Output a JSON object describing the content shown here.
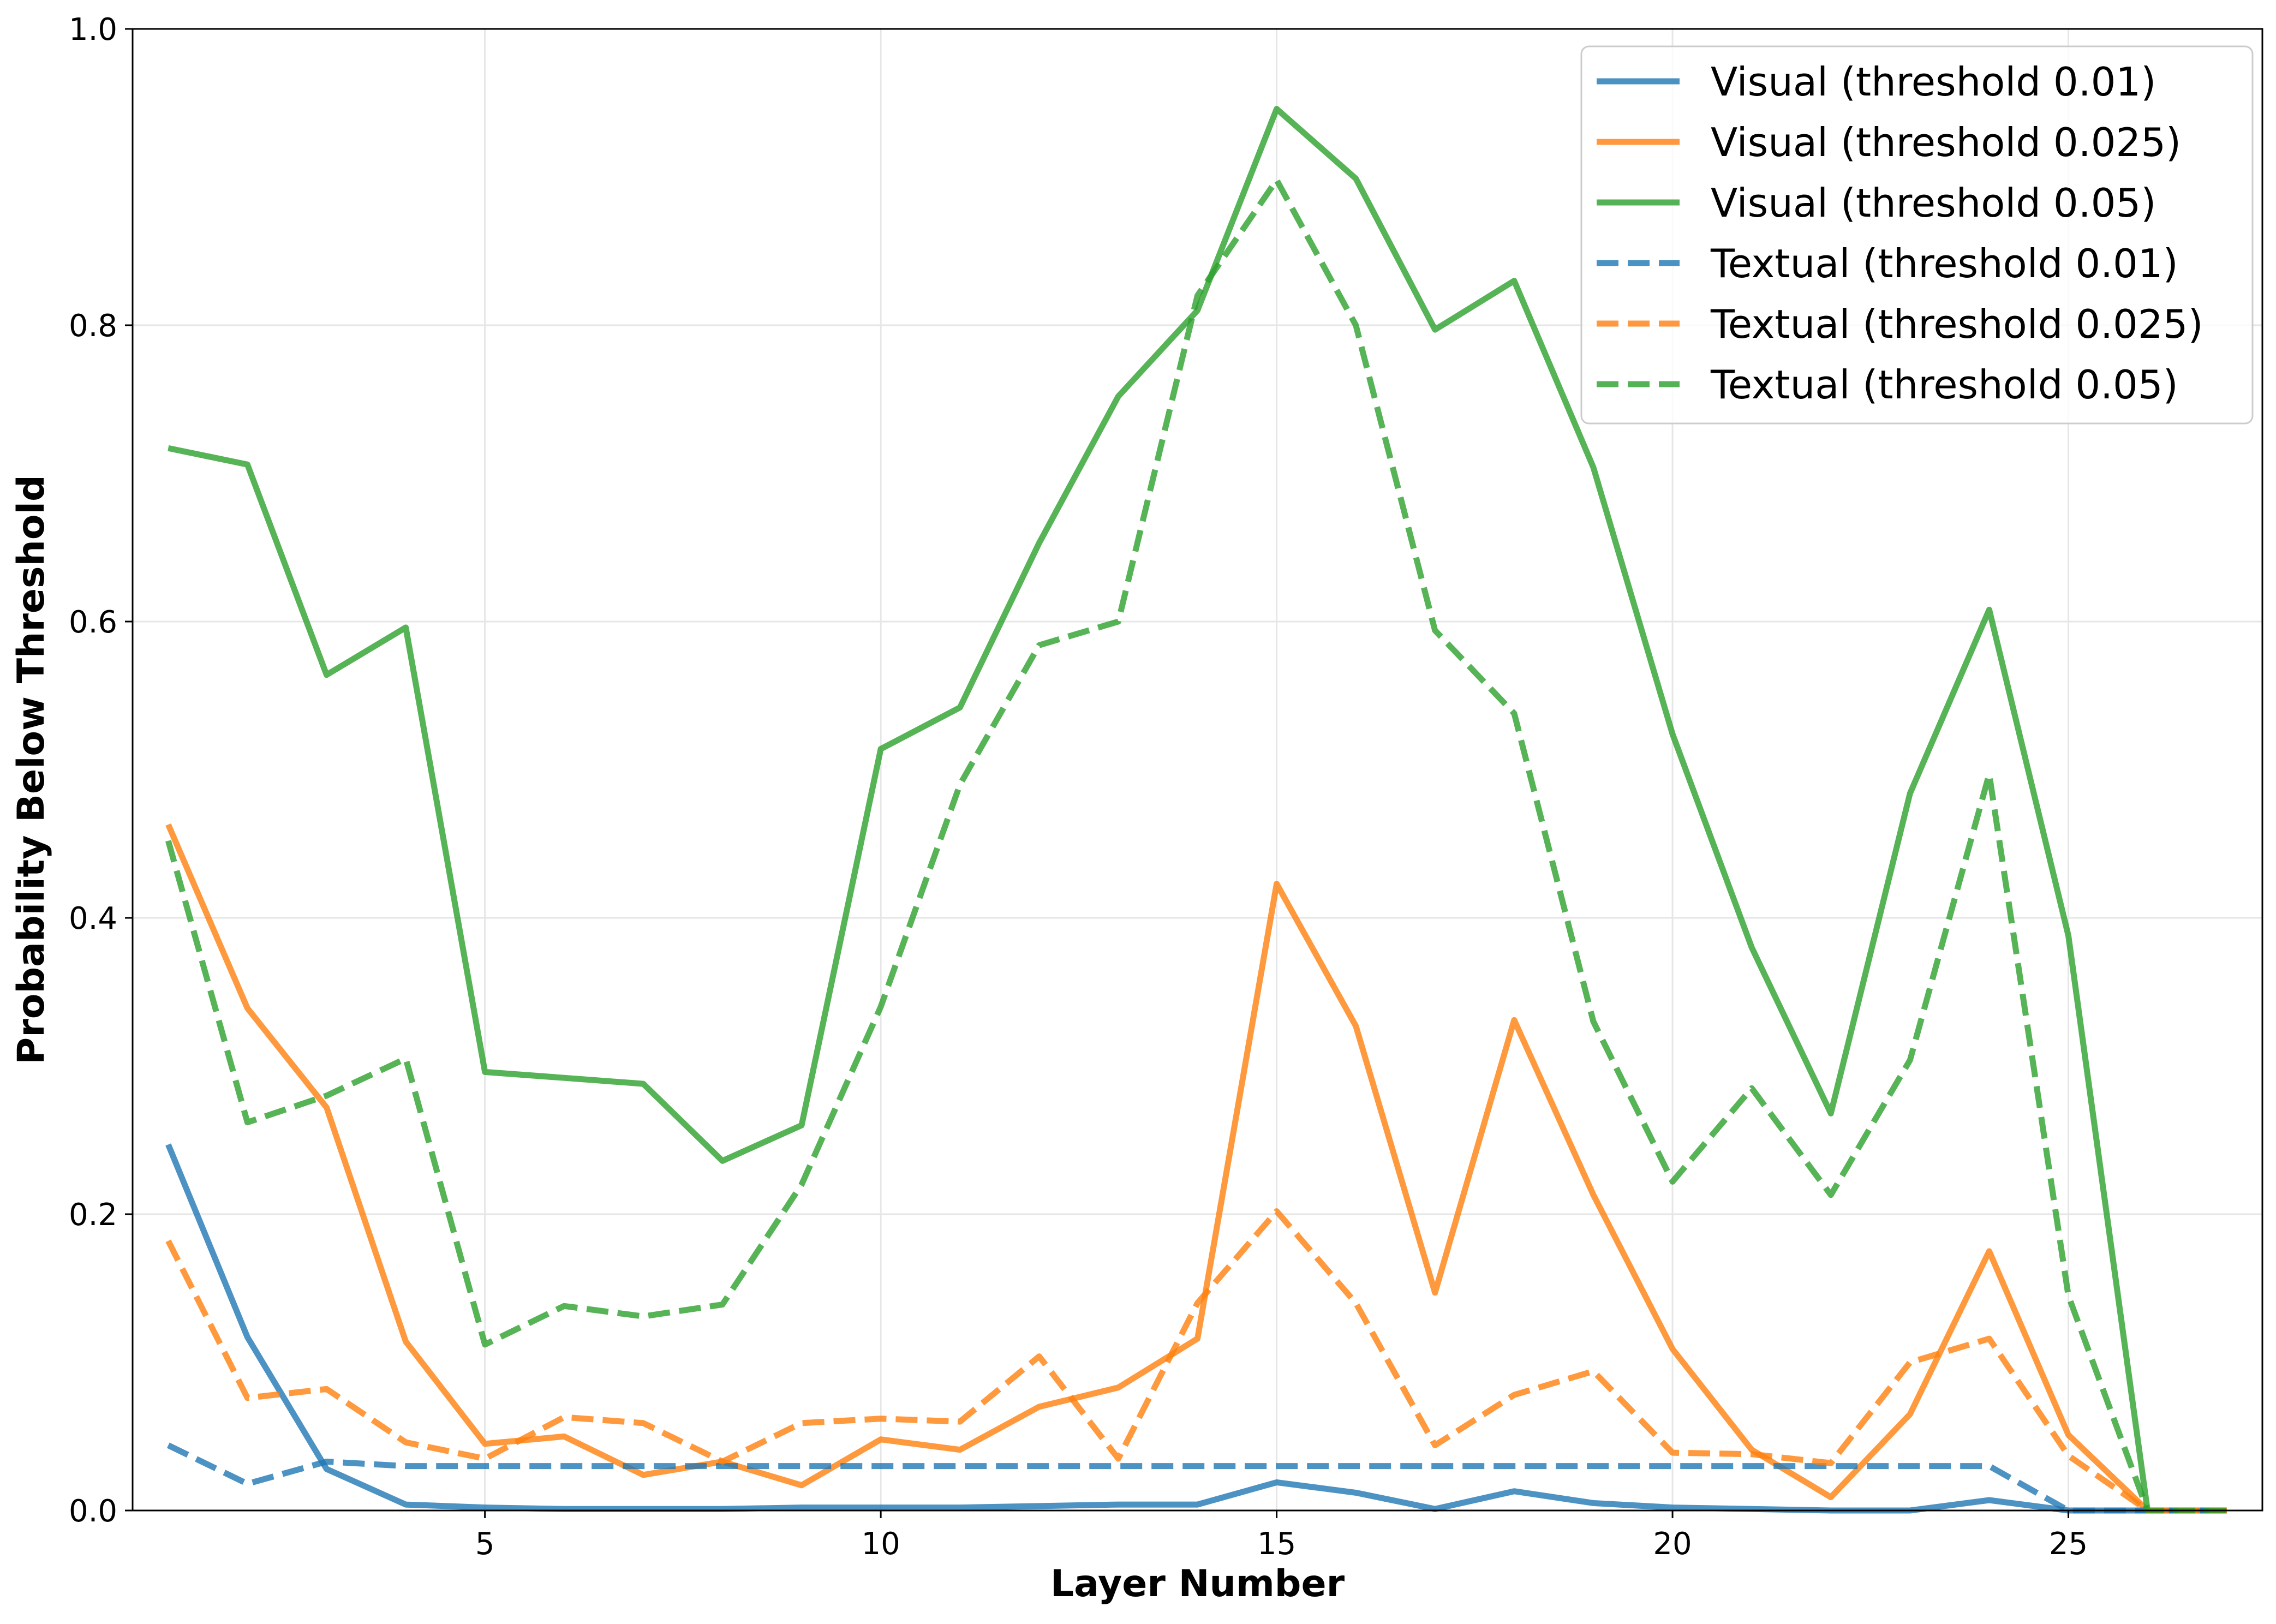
{
  "chart_data": {
    "type": "line",
    "title": "",
    "xlabel": "Layer Number",
    "ylabel": "Probability Below Threshold",
    "xlim": [
      0.55,
      27.45
    ],
    "ylim": [
      0,
      1
    ],
    "xticks": [
      5,
      10,
      15,
      20,
      25
    ],
    "yticks": [
      0.0,
      0.2,
      0.4,
      0.6,
      0.8,
      1.0
    ],
    "grid": true,
    "legend_position": "top-right",
    "x": [
      1,
      2,
      3,
      4,
      5,
      6,
      7,
      8,
      9,
      10,
      11,
      12,
      13,
      14,
      15,
      16,
      17,
      18,
      19,
      20,
      21,
      22,
      23,
      24,
      25,
      26,
      27
    ],
    "series": [
      {
        "name": "Visual (threshold 0.01)",
        "color": "#1f77b4",
        "style": "solid",
        "values": [
          0.247,
          0.117,
          0.028,
          0.004,
          0.002,
          0.001,
          0.001,
          0.001,
          0.002,
          0.002,
          0.002,
          0.003,
          0.004,
          0.004,
          0.019,
          0.012,
          0.001,
          0.013,
          0.005,
          0.002,
          0.001,
          0.0,
          0.0,
          0.007,
          0.0,
          0.0,
          0.0
        ]
      },
      {
        "name": "Visual (threshold 0.025)",
        "color": "#ff7f0e",
        "style": "solid",
        "values": [
          0.463,
          0.339,
          0.272,
          0.114,
          0.045,
          0.05,
          0.024,
          0.033,
          0.017,
          0.048,
          0.041,
          0.07,
          0.083,
          0.116,
          0.423,
          0.327,
          0.147,
          0.331,
          0.213,
          0.109,
          0.041,
          0.009,
          0.065,
          0.175,
          0.051,
          0.0,
          0.0
        ]
      },
      {
        "name": "Visual (threshold 0.05)",
        "color": "#2ca02c",
        "style": "solid",
        "values": [
          0.717,
          0.706,
          0.564,
          0.596,
          0.296,
          0.292,
          0.288,
          0.236,
          0.26,
          0.514,
          0.542,
          0.653,
          0.752,
          0.81,
          0.946,
          0.899,
          0.797,
          0.83,
          0.704,
          0.524,
          0.38,
          0.268,
          0.484,
          0.608,
          0.388,
          0.0,
          0.0
        ]
      },
      {
        "name": "Textual (threshold 0.01)",
        "color": "#1f77b4",
        "style": "dashed",
        "values": [
          0.044,
          0.018,
          0.033,
          0.03,
          0.03,
          0.03,
          0.03,
          0.03,
          0.03,
          0.03,
          0.03,
          0.03,
          0.03,
          0.03,
          0.03,
          0.03,
          0.03,
          0.03,
          0.03,
          0.03,
          0.03,
          0.03,
          0.03,
          0.03,
          0.0,
          0.0,
          0.0
        ]
      },
      {
        "name": "Textual (threshold 0.025)",
        "color": "#ff7f0e",
        "style": "dashed",
        "values": [
          0.182,
          0.076,
          0.082,
          0.046,
          0.035,
          0.063,
          0.059,
          0.033,
          0.059,
          0.062,
          0.06,
          0.104,
          0.035,
          0.14,
          0.202,
          0.14,
          0.044,
          0.078,
          0.094,
          0.039,
          0.038,
          0.032,
          0.1,
          0.116,
          0.037,
          0.0,
          0.0
        ]
      },
      {
        "name": "Textual (threshold 0.05)",
        "color": "#2ca02c",
        "style": "dashed",
        "values": [
          0.452,
          0.262,
          0.28,
          0.305,
          0.112,
          0.138,
          0.131,
          0.139,
          0.22,
          0.34,
          0.49,
          0.584,
          0.6,
          0.82,
          0.898,
          0.8,
          0.594,
          0.538,
          0.33,
          0.222,
          0.285,
          0.213,
          0.304,
          0.497,
          0.145,
          0.0,
          0.0
        ]
      }
    ]
  }
}
